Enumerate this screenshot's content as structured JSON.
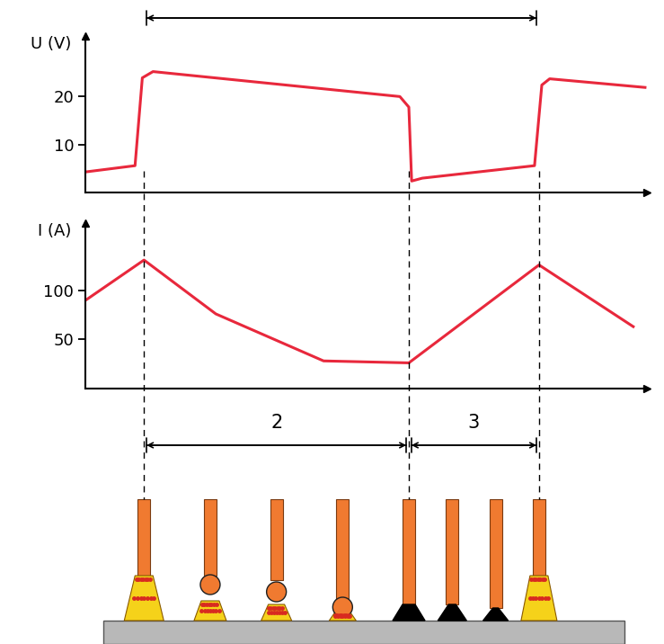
{
  "chart_data": [
    {
      "type": "line",
      "y_label": "U (V)",
      "color": "#e8283c",
      "x": [
        0,
        8.8,
        10.1,
        12,
        56,
        57.6,
        58.1,
        60,
        80,
        81.3,
        82.7,
        99.7
      ],
      "values": [
        4.3,
        5.6,
        23.9,
        25.2,
        20,
        17.8,
        2.4,
        3,
        5.6,
        22.4,
        23.7,
        21.9
      ],
      "xlim": [
        0,
        100
      ],
      "ylim": [
        0,
        32.6
      ],
      "yticks": [
        10,
        20
      ],
      "tick_labels": "y"
    },
    {
      "type": "line",
      "y_label": "I (A)",
      "color": "#e8283c",
      "x": [
        0,
        10.4,
        23.2,
        42.4,
        57.6,
        80.8,
        97.6
      ],
      "values": [
        90,
        131,
        76,
        28,
        26,
        126,
        63
      ],
      "xlim": [
        0,
        100
      ],
      "ylim": [
        0,
        169
      ],
      "yticks": [
        50,
        100
      ],
      "tick_labels": "y"
    }
  ],
  "phases": {
    "boundaries": [
      10.4,
      57.6,
      80.8
    ],
    "labels": [
      "2",
      "3"
    ]
  }
}
